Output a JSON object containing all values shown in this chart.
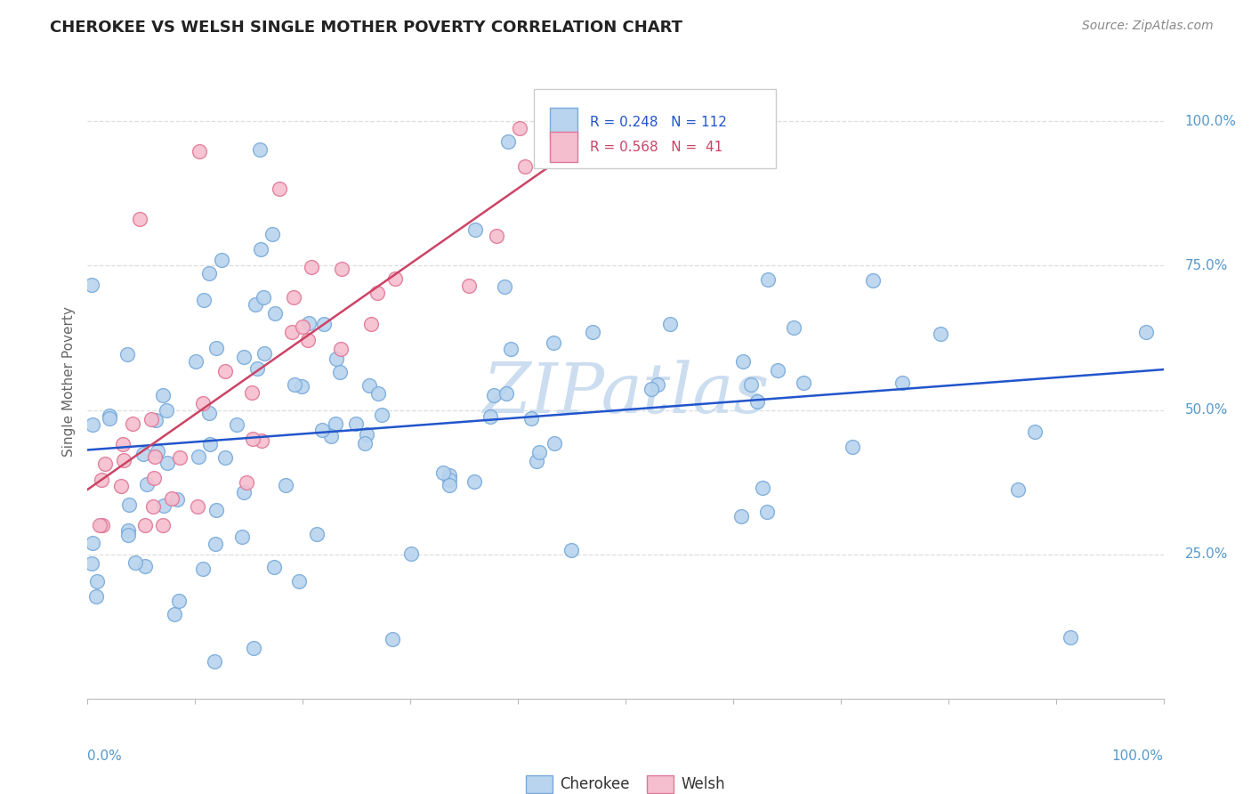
{
  "title": "CHEROKEE VS WELSH SINGLE MOTHER POVERTY CORRELATION CHART",
  "source": "Source: ZipAtlas.com",
  "ylabel": "Single Mother Poverty",
  "legend_cherokee": "Cherokee",
  "legend_welsh": "Welsh",
  "cherokee_R": 0.248,
  "cherokee_N": 112,
  "welsh_R": 0.568,
  "welsh_N": 41,
  "cherokee_color": "#b8d4ee",
  "cherokee_edge": "#7aabdb",
  "welsh_color": "#f5bece",
  "welsh_edge": "#e07898",
  "blue_line_color": "#2255cc",
  "pink_line_color": "#cc4466",
  "watermark_color": "#ccddf0",
  "background_color": "#ffffff",
  "grid_color": "#dddddd",
  "title_color": "#222222",
  "source_color": "#888888",
  "right_label_color": "#5599cc",
  "axis_label_color": "#5599cc"
}
